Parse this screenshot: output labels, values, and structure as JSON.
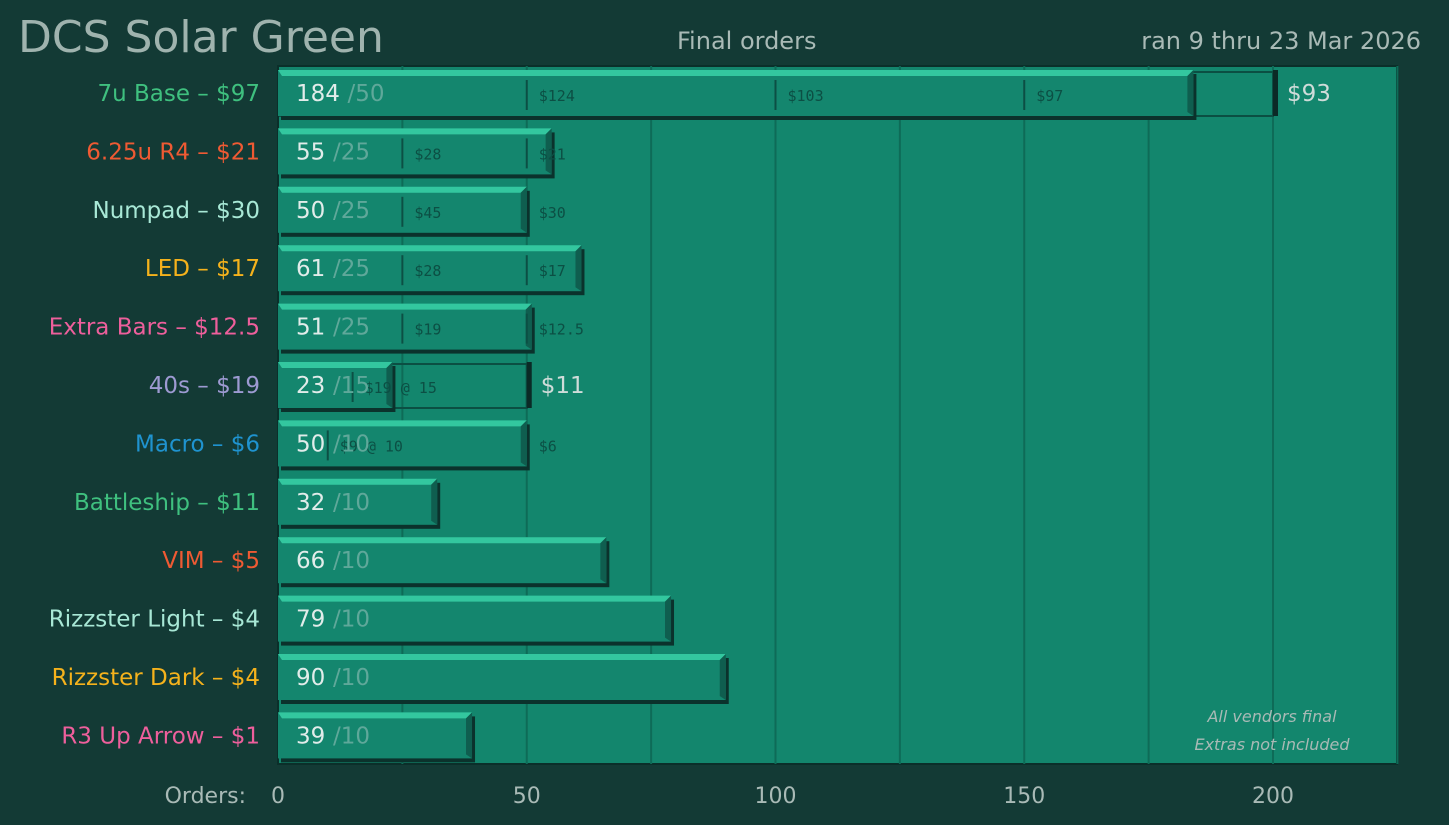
{
  "header": {
    "title": "DCS Solar Green",
    "subtitle": "Final orders",
    "date_range": "ran 9 thru 23 Mar 2026"
  },
  "chart_data": {
    "type": "bar",
    "orientation": "horizontal",
    "title": "DCS Solar Green",
    "subtitle": "Final orders",
    "xlabel": "Orders:",
    "xlim": [
      0,
      225
    ],
    "xticks": [
      0,
      50,
      100,
      150,
      200
    ],
    "grid": "vertical",
    "annotations": [
      "All vendors final",
      "Extras not included"
    ],
    "categories": [
      {
        "label": "7u Base – $97",
        "color": "#3fc07f",
        "orders": 184,
        "moq": 50,
        "moq_label": "/50",
        "tiers": [
          {
            "at": 50,
            "price": "$124"
          },
          {
            "at": 100,
            "price": "$103"
          },
          {
            "at": 150,
            "price": "$97"
          }
        ],
        "next_tier": {
          "at": 200,
          "price": "$93",
          "highlight": true
        }
      },
      {
        "label": "6.25u R4 – $21",
        "color": "#ef5a33",
        "orders": 55,
        "moq": 25,
        "moq_label": "/25",
        "tiers": [
          {
            "at": 25,
            "price": "$28"
          },
          {
            "at": 50,
            "price": "$21"
          }
        ],
        "next_tier": null
      },
      {
        "label": "Numpad – $30",
        "color": "#a8e8d6",
        "orders": 50,
        "moq": 25,
        "moq_label": "/25",
        "tiers": [
          {
            "at": 25,
            "price": "$45"
          },
          {
            "at": 50,
            "price": "$30"
          }
        ],
        "next_tier": null
      },
      {
        "label": "LED – $17",
        "color": "#f5b21c",
        "orders": 61,
        "moq": 25,
        "moq_label": "/25",
        "tiers": [
          {
            "at": 25,
            "price": "$28"
          },
          {
            "at": 50,
            "price": "$17"
          }
        ],
        "next_tier": null
      },
      {
        "label": "Extra Bars – $12.5",
        "color": "#ee5f9c",
        "orders": 51,
        "moq": 25,
        "moq_label": "/25",
        "tiers": [
          {
            "at": 25,
            "price": "$19"
          },
          {
            "at": 50,
            "price": "$12.5"
          }
        ],
        "next_tier": null
      },
      {
        "label": "40s – $19",
        "color": "#9d9ad2",
        "orders": 23,
        "moq": 15,
        "moq_label": "/15",
        "tiers": [
          {
            "at": 15,
            "price": "$19 @ 15"
          }
        ],
        "next_tier": {
          "at": 50,
          "price": "$11",
          "highlight": true
        }
      },
      {
        "label": "Macro – $6",
        "color": "#1f93cf",
        "orders": 50,
        "moq": 10,
        "moq_label": "/10",
        "tiers": [
          {
            "at": 10,
            "price": "$9 @ 10"
          },
          {
            "at": 50,
            "price": "$6"
          }
        ],
        "next_tier": null
      },
      {
        "label": "Battleship – $11",
        "color": "#3fc07f",
        "orders": 32,
        "moq": 10,
        "moq_label": "/10",
        "tiers": [],
        "next_tier": null
      },
      {
        "label": "VIM – $5",
        "color": "#ef5a33",
        "orders": 66,
        "moq": 10,
        "moq_label": "/10",
        "tiers": [],
        "next_tier": null
      },
      {
        "label": "Rizzster Light – $4",
        "color": "#a8e8d6",
        "orders": 79,
        "moq": 10,
        "moq_label": "/10",
        "tiers": [],
        "next_tier": null
      },
      {
        "label": "Rizzster Dark – $4",
        "color": "#f5b21c",
        "orders": 90,
        "moq": 10,
        "moq_label": "/10",
        "tiers": [],
        "next_tier": null
      },
      {
        "label": "R3 Up Arrow – $1",
        "color": "#ee5f9c",
        "orders": 39,
        "moq": 10,
        "moq_label": "/10",
        "tiers": [],
        "next_tier": null
      }
    ],
    "colors": {
      "background": "#133a35",
      "plot_bg": "#13866d",
      "bar": "#14866e",
      "bar_top": "#33c79f",
      "bar_shadow": "#0b322c",
      "grid": "#0e6b57",
      "tier_text": "#0c4f44"
    }
  }
}
